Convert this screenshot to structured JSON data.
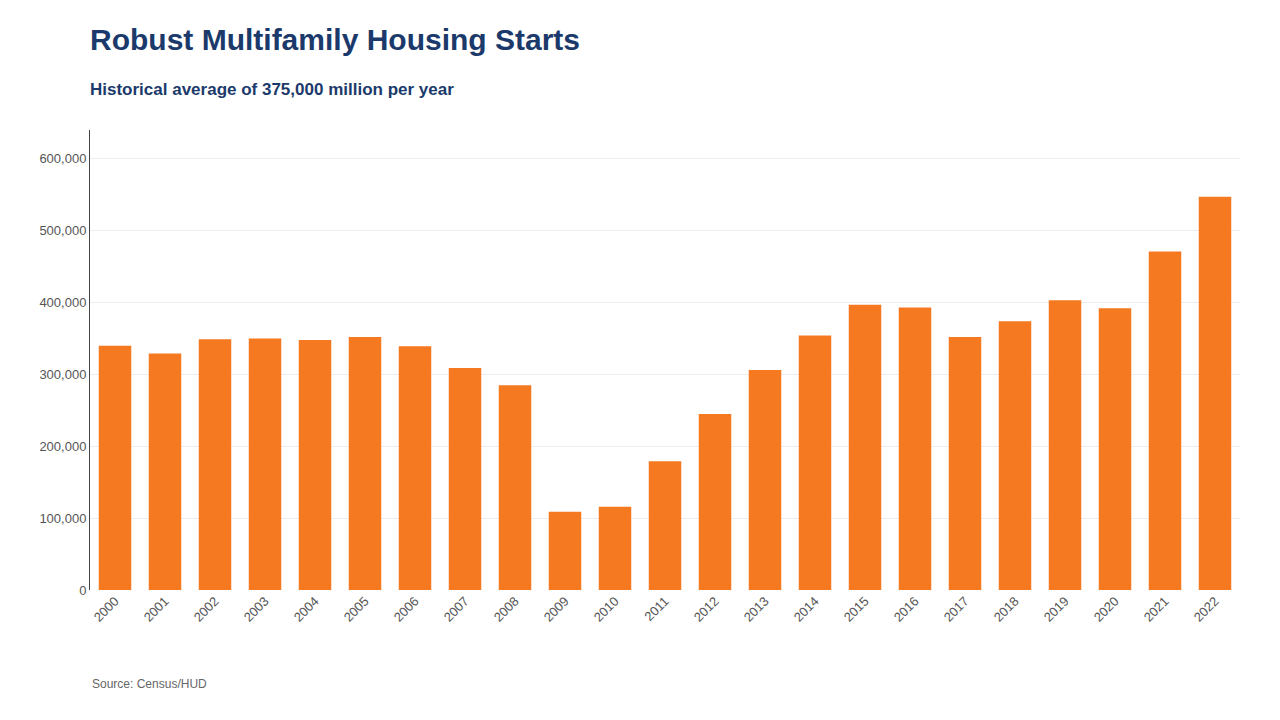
{
  "chart_data": {
    "type": "bar",
    "title": "Robust Multifamily Housing Starts",
    "subtitle": "Historical average of 375,000 million per year",
    "annotations": [
      "Source: Census/HUD"
    ],
    "categories": [
      "2000",
      "2001",
      "2002",
      "2003",
      "2004",
      "2005",
      "2006",
      "2007",
      "2008",
      "2009",
      "2010",
      "2011",
      "2012",
      "2013",
      "2014",
      "2015",
      "2016",
      "2017",
      "2018",
      "2019",
      "2020",
      "2021",
      "2022"
    ],
    "values": [
      340000,
      329000,
      349000,
      350000,
      348000,
      352000,
      339000,
      309000,
      285000,
      109000,
      116000,
      179000,
      245000,
      306000,
      354000,
      397000,
      393000,
      352000,
      374000,
      403000,
      392000,
      471000,
      547000
    ],
    "color": "#F47920",
    "ylim": [
      0,
      640000
    ],
    "yticks": [
      0,
      {
        "value": 100000,
        "label": "100,000"
      },
      {
        "value": 200000,
        "label": "200,000"
      },
      {
        "value": 300000,
        "label": "300,000"
      },
      {
        "value": 400000,
        "label": "400,000"
      },
      {
        "value": 500000,
        "label": "500,000"
      },
      {
        "value": 600000,
        "label": "600,000"
      }
    ],
    "grid": true
  }
}
